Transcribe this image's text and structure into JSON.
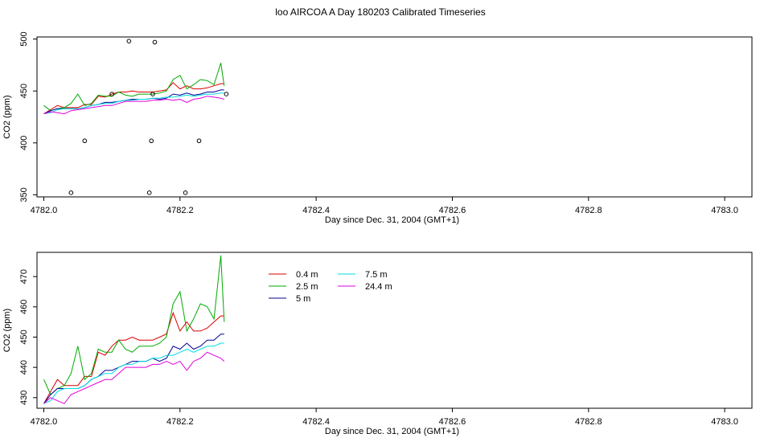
{
  "title": "loo AIRCOA A  Day 180203  Calibrated Timeseries",
  "colors": {
    "0.4 m": "#dd0000",
    "2.5 m": "#00aa00",
    "5 m": "#000099",
    "7.5 m": "#00dddd",
    "24.4 m": "#dd00dd",
    "axis": "#000000",
    "background": "#ffffff"
  },
  "chart_data": [
    {
      "type": "line",
      "title": "loo AIRCOA A  Day 180203  Calibrated Timeseries",
      "xlabel": "Day since Dec. 31, 2004 (GMT+1)",
      "ylabel": "CO2 (ppm)",
      "xlim": [
        4781.99,
        4783.04
      ],
      "ylim": [
        348,
        502
      ],
      "xticks": [
        4782.0,
        4782.2,
        4782.4,
        4782.6,
        4782.8,
        4783.0
      ],
      "xtick_labels": [
        "4782.0",
        "4782.2",
        "4782.4",
        "4782.6",
        "4782.8",
        "4783.0"
      ],
      "yticks": [
        350,
        400,
        450,
        500
      ],
      "ytick_labels": [
        "350",
        "400",
        "450",
        "500"
      ],
      "grid": false,
      "legend": "none",
      "outliers": {
        "x": [
          4782.04,
          4782.06,
          4782.1,
          4782.125,
          4782.155,
          4782.158,
          4782.16,
          4782.163,
          4782.208,
          4782.228,
          4782.268
        ],
        "y": [
          352,
          402,
          447,
          498,
          352,
          402,
          447,
          497,
          352,
          402,
          447
        ]
      },
      "series": [
        {
          "name": "0.4 m",
          "x": [
            4782.0,
            4782.01,
            4782.02,
            4782.03,
            4782.04,
            4782.05,
            4782.06,
            4782.07,
            4782.08,
            4782.09,
            4782.1,
            4782.11,
            4782.12,
            4782.13,
            4782.14,
            4782.15,
            4782.16,
            4782.17,
            4782.18,
            4782.19,
            4782.2,
            4782.21,
            4782.22,
            4782.23,
            4782.24,
            4782.25,
            4782.26,
            4782.265
          ],
          "y": [
            428,
            432,
            436,
            434,
            434,
            434,
            437,
            437,
            445,
            444,
            447,
            449,
            449,
            450,
            449,
            449,
            449,
            450,
            451,
            458,
            452,
            455,
            452,
            452,
            453,
            455,
            457,
            457
          ]
        },
        {
          "name": "2.5 m",
          "x": [
            4782.0,
            4782.01,
            4782.02,
            4782.03,
            4782.04,
            4782.05,
            4782.06,
            4782.07,
            4782.08,
            4782.09,
            4782.1,
            4782.11,
            4782.12,
            4782.13,
            4782.14,
            4782.15,
            4782.16,
            4782.17,
            4782.18,
            4782.19,
            4782.2,
            4782.21,
            4782.22,
            4782.23,
            4782.24,
            4782.25,
            4782.26,
            4782.265
          ],
          "y": [
            436,
            431,
            433,
            434,
            438,
            447,
            436,
            438,
            446,
            445,
            445,
            449,
            446,
            445,
            447,
            447,
            447,
            448,
            450,
            461,
            465,
            452,
            456,
            461,
            460,
            456,
            477,
            455
          ]
        },
        {
          "name": "5 m",
          "x": [
            4782.0,
            4782.01,
            4782.02,
            4782.03,
            4782.04,
            4782.05,
            4782.06,
            4782.07,
            4782.08,
            4782.09,
            4782.1,
            4782.11,
            4782.12,
            4782.13,
            4782.14,
            4782.15,
            4782.16,
            4782.17,
            4782.18,
            4782.19,
            4782.2,
            4782.21,
            4782.22,
            4782.23,
            4782.24,
            4782.25,
            4782.26,
            4782.265
          ],
          "y": [
            428,
            431,
            433,
            433,
            433,
            433,
            434,
            436,
            437,
            439,
            439,
            440,
            441,
            442,
            442,
            442,
            443,
            442,
            443,
            447,
            446,
            448,
            446,
            447,
            449,
            449,
            451,
            451
          ]
        },
        {
          "name": "7.5 m",
          "x": [
            4782.0,
            4782.01,
            4782.02,
            4782.03,
            4782.04,
            4782.05,
            4782.06,
            4782.07,
            4782.08,
            4782.09,
            4782.1,
            4782.11,
            4782.12,
            4782.13,
            4782.14,
            4782.15,
            4782.16,
            4782.17,
            4782.18,
            4782.19,
            4782.2,
            4782.21,
            4782.22,
            4782.23,
            4782.24,
            4782.25,
            4782.26,
            4782.265
          ],
          "y": [
            428,
            429,
            432,
            433,
            433,
            433,
            434,
            436,
            437,
            438,
            438,
            440,
            441,
            441,
            442,
            442,
            443,
            443,
            444,
            444,
            445,
            446,
            445,
            446,
            447,
            447,
            448,
            448
          ]
        },
        {
          "name": "24.4 m",
          "x": [
            4782.0,
            4782.01,
            4782.02,
            4782.03,
            4782.04,
            4782.05,
            4782.06,
            4782.07,
            4782.08,
            4782.09,
            4782.1,
            4782.11,
            4782.12,
            4782.13,
            4782.14,
            4782.15,
            4782.16,
            4782.17,
            4782.18,
            4782.19,
            4782.2,
            4782.21,
            4782.22,
            4782.23,
            4782.24,
            4782.25,
            4782.26,
            4782.265
          ],
          "y": [
            428,
            430,
            429,
            428,
            431,
            432,
            433,
            434,
            435,
            436,
            436,
            438,
            440,
            440,
            440,
            440,
            441,
            441,
            442,
            441,
            442,
            439,
            442,
            443,
            445,
            444,
            443,
            442
          ]
        }
      ]
    },
    {
      "type": "line",
      "title": "",
      "xlabel": "Day since Dec. 31, 2004 (GMT+1)",
      "ylabel": "CO2 (ppm)",
      "xlim": [
        4781.99,
        4783.04
      ],
      "ylim": [
        426.5,
        478
      ],
      "xticks": [
        4782.0,
        4782.2,
        4782.4,
        4782.6,
        4782.8,
        4783.0
      ],
      "xtick_labels": [
        "4782.0",
        "4782.2",
        "4782.4",
        "4782.6",
        "4782.8",
        "4783.0"
      ],
      "yticks": [
        430,
        440,
        450,
        460,
        470
      ],
      "ytick_labels": [
        "430",
        "440",
        "450",
        "460",
        "470"
      ],
      "grid": false,
      "legend": "top-left",
      "legend_entries": [
        "0.4 m",
        "2.5 m",
        "5 m",
        "7.5 m",
        "24.4 m"
      ],
      "series": [
        {
          "name": "0.4 m",
          "x": [
            4782.0,
            4782.01,
            4782.02,
            4782.03,
            4782.04,
            4782.05,
            4782.06,
            4782.07,
            4782.08,
            4782.09,
            4782.1,
            4782.11,
            4782.12,
            4782.13,
            4782.14,
            4782.15,
            4782.16,
            4782.17,
            4782.18,
            4782.19,
            4782.2,
            4782.21,
            4782.22,
            4782.23,
            4782.24,
            4782.25,
            4782.26,
            4782.265
          ],
          "y": [
            428,
            432,
            436,
            434,
            434,
            434,
            437,
            437,
            445,
            444,
            447,
            449,
            449,
            450,
            449,
            449,
            449,
            450,
            451,
            458,
            452,
            455,
            452,
            452,
            453,
            455,
            457,
            457
          ]
        },
        {
          "name": "2.5 m",
          "x": [
            4782.0,
            4782.01,
            4782.02,
            4782.03,
            4782.04,
            4782.05,
            4782.06,
            4782.07,
            4782.08,
            4782.09,
            4782.1,
            4782.11,
            4782.12,
            4782.13,
            4782.14,
            4782.15,
            4782.16,
            4782.17,
            4782.18,
            4782.19,
            4782.2,
            4782.21,
            4782.22,
            4782.23,
            4782.24,
            4782.25,
            4782.26,
            4782.265
          ],
          "y": [
            436,
            431,
            433,
            434,
            438,
            447,
            436,
            438,
            446,
            445,
            445,
            449,
            446,
            445,
            447,
            447,
            447,
            448,
            450,
            461,
            465,
            452,
            456,
            461,
            460,
            456,
            477,
            455
          ]
        },
        {
          "name": "5 m",
          "x": [
            4782.0,
            4782.01,
            4782.02,
            4782.03,
            4782.04,
            4782.05,
            4782.06,
            4782.07,
            4782.08,
            4782.09,
            4782.1,
            4782.11,
            4782.12,
            4782.13,
            4782.14,
            4782.15,
            4782.16,
            4782.17,
            4782.18,
            4782.19,
            4782.2,
            4782.21,
            4782.22,
            4782.23,
            4782.24,
            4782.25,
            4782.26,
            4782.265
          ],
          "y": [
            428,
            431,
            433,
            433,
            433,
            433,
            434,
            436,
            437,
            439,
            439,
            440,
            441,
            442,
            442,
            442,
            443,
            442,
            443,
            447,
            446,
            448,
            446,
            447,
            449,
            449,
            451,
            451
          ]
        },
        {
          "name": "7.5 m",
          "x": [
            4782.0,
            4782.01,
            4782.02,
            4782.03,
            4782.04,
            4782.05,
            4782.06,
            4782.07,
            4782.08,
            4782.09,
            4782.1,
            4782.11,
            4782.12,
            4782.13,
            4782.14,
            4782.15,
            4782.16,
            4782.17,
            4782.18,
            4782.19,
            4782.2,
            4782.21,
            4782.22,
            4782.23,
            4782.24,
            4782.25,
            4782.26,
            4782.265
          ],
          "y": [
            428,
            429,
            432,
            433,
            433,
            433,
            434,
            436,
            437,
            438,
            438,
            440,
            441,
            441,
            442,
            442,
            443,
            443,
            444,
            444,
            445,
            446,
            445,
            446,
            447,
            447,
            448,
            448
          ]
        },
        {
          "name": "24.4 m",
          "x": [
            4782.0,
            4782.01,
            4782.02,
            4782.03,
            4782.04,
            4782.05,
            4782.06,
            4782.07,
            4782.08,
            4782.09,
            4782.1,
            4782.11,
            4782.12,
            4782.13,
            4782.14,
            4782.15,
            4782.16,
            4782.17,
            4782.18,
            4782.19,
            4782.2,
            4782.21,
            4782.22,
            4782.23,
            4782.24,
            4782.25,
            4782.26,
            4782.265
          ],
          "y": [
            428,
            430,
            429,
            428,
            431,
            432,
            433,
            434,
            435,
            436,
            436,
            438,
            440,
            440,
            440,
            440,
            441,
            441,
            442,
            441,
            442,
            439,
            442,
            443,
            445,
            444,
            443,
            442
          ]
        }
      ]
    }
  ]
}
